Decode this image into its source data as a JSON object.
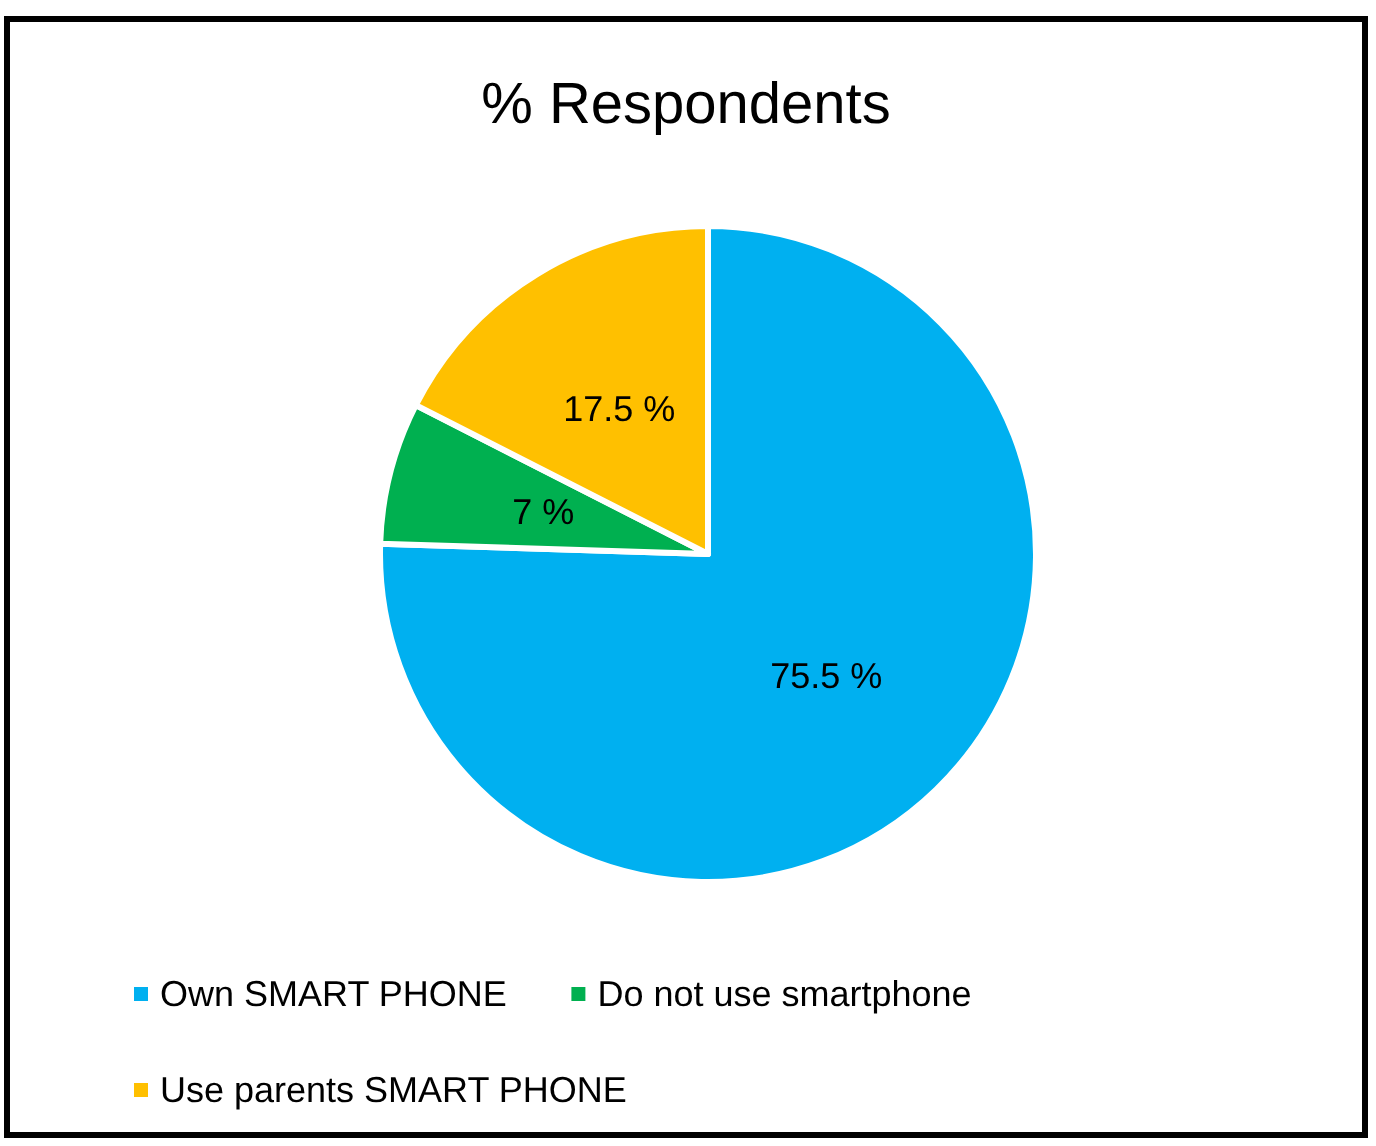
{
  "chart_data": {
    "type": "pie",
    "title": "% Respondents",
    "categories": [
      "Own SMART PHONE",
      "Do not use smartphone",
      "Use parents SMART PHONE"
    ],
    "values": [
      75.5,
      7,
      17.5
    ],
    "colors": [
      "#00b0f0",
      "#00b050",
      "#ffc000"
    ],
    "value_labels": [
      "75.5 %",
      "7 %",
      "17.5 %"
    ],
    "legend": "bottom"
  }
}
